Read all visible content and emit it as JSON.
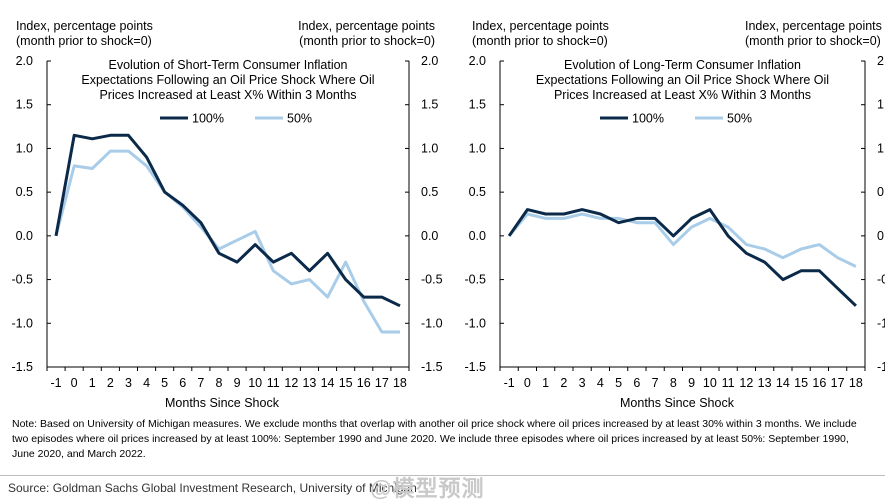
{
  "chart_data": [
    {
      "type": "line",
      "title_lines": [
        "Evolution  of Short-Term Consumer Inflation",
        "Expectations Following an Oil Price Shock Where Oil",
        "Prices Increased at Least X% Within 3 Months"
      ],
      "left_axis_label": [
        "Index, percentage points",
        "(month prior to shock=0)"
      ],
      "right_axis_label": [
        "Index, percentage points",
        "(month prior to shock=0)"
      ],
      "xlabel": "Months Since Shock",
      "x": [
        -1,
        0,
        1,
        2,
        3,
        4,
        5,
        6,
        7,
        8,
        9,
        10,
        11,
        12,
        13,
        14,
        15,
        16,
        17,
        18
      ],
      "x_tick_labels": [
        "-1",
        "0",
        "1",
        "2",
        "3",
        "4",
        "5",
        "6",
        "7",
        "8",
        "9",
        "10",
        "11",
        "12",
        "13",
        "14",
        "15",
        "16",
        "17",
        "18"
      ],
      "ylim": [
        -1.5,
        2.0
      ],
      "y_ticks": [
        2.0,
        1.5,
        1.0,
        0.5,
        0.0,
        -0.5,
        -1.0,
        -1.5
      ],
      "y_tick_labels": [
        "2.0",
        "1.5",
        "1.0",
        "0.5",
        "0.0",
        "-0.5",
        "-1.0",
        "-1.5"
      ],
      "legend_placement": "top-center",
      "series": [
        {
          "name": "100%",
          "color": "#0b2a4a",
          "values": [
            0,
            1.15,
            1.11,
            1.15,
            1.15,
            0.9,
            0.5,
            0.35,
            0.15,
            -0.2,
            -0.3,
            -0.1,
            -0.3,
            -0.2,
            -0.4,
            -0.2,
            -0.5,
            -0.7,
            -0.7,
            -0.8
          ]
        },
        {
          "name": "50%",
          "color": "#a9cde9",
          "values": [
            0,
            0.8,
            0.77,
            0.97,
            0.97,
            0.8,
            0.5,
            0.33,
            0.1,
            -0.15,
            -0.05,
            0.05,
            -0.4,
            -0.55,
            -0.5,
            -0.7,
            -0.3,
            -0.75,
            -1.1,
            -1.1
          ]
        }
      ]
    },
    {
      "type": "line",
      "title_lines": [
        "Evolution  of Long-Term  Consumer  Inflation",
        "Expectations Following  an Oil Price Shock Where Oil",
        "Prices Increased at Least X%  Within 3 Months"
      ],
      "left_axis_label": [
        "Index, percentage points",
        "(month prior to shock=0)"
      ],
      "right_axis_label": [
        "Index, percentage points",
        "(month prior to shock=0)"
      ],
      "xlabel": "Months Since Shock",
      "x": [
        -1,
        0,
        1,
        2,
        3,
        4,
        5,
        6,
        7,
        8,
        9,
        10,
        11,
        12,
        13,
        14,
        15,
        16,
        17,
        18
      ],
      "x_tick_labels": [
        "-1",
        "0",
        "1",
        "2",
        "3",
        "4",
        "5",
        "6",
        "7",
        "8",
        "9",
        "10",
        "11",
        "12",
        "13",
        "14",
        "15",
        "16",
        "17",
        "18"
      ],
      "ylim": [
        -1.5,
        2.0
      ],
      "y_ticks": [
        2.0,
        1.5,
        1.0,
        0.5,
        0.0,
        -0.5,
        -1.0,
        -1.5
      ],
      "y_tick_labels": [
        "2.0",
        "1.5",
        "1.0",
        "0.5",
        "0.0",
        "-0.5",
        "-1.0",
        "-1.5"
      ],
      "legend_placement": "top-center",
      "series": [
        {
          "name": "100%",
          "color": "#0b2a4a",
          "values": [
            0,
            0.3,
            0.25,
            0.25,
            0.3,
            0.25,
            0.15,
            0.2,
            0.2,
            0.0,
            0.2,
            0.3,
            0.0,
            -0.2,
            -0.3,
            -0.5,
            -0.4,
            -0.4,
            -0.6,
            -0.8
          ]
        },
        {
          "name": "50%",
          "color": "#a9cde9",
          "values": [
            0,
            0.25,
            0.2,
            0.2,
            0.25,
            0.2,
            0.2,
            0.15,
            0.15,
            -0.1,
            0.1,
            0.2,
            0.1,
            -0.1,
            -0.15,
            -0.25,
            -0.15,
            -0.1,
            -0.25,
            -0.35
          ]
        }
      ]
    }
  ],
  "note_lines": [
    "Note: Based on University of Michigan measures. We exclude months that overlap with another oil price shock where oil prices increased by at least 30% within 3 months. We include",
    "two episodes where oil prices increased by at least 100%: September 1990 and June 2020. We include three episodes where oil prices increased by at least 50%: September 1990,",
    "June 2020, and March 2022."
  ],
  "source": "Source: Goldman Sachs Global Investment Research, University of Michigan",
  "watermark": "@模型预测"
}
